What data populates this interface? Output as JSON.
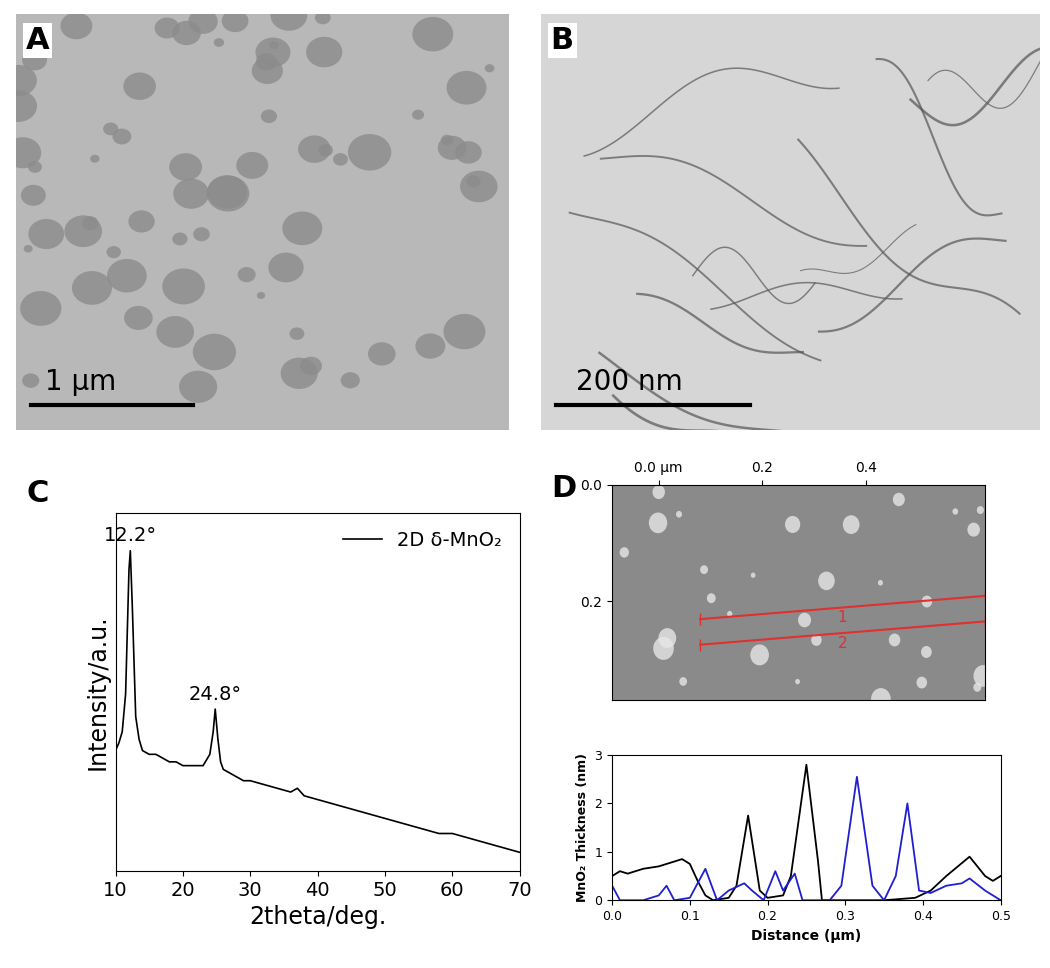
{
  "chart_data": [
    {
      "type": "image",
      "panel": "A",
      "scale_bar": "1 μm"
    },
    {
      "type": "image",
      "panel": "B",
      "scale_bar": "200 nm"
    },
    {
      "type": "line",
      "panel": "C",
      "x": [
        10,
        10.5,
        11,
        11.5,
        12,
        12.2,
        12.5,
        13,
        13.5,
        14,
        15,
        16,
        17,
        18,
        19,
        20,
        21,
        22,
        23,
        24,
        24.5,
        24.8,
        25.2,
        25.6,
        26,
        27,
        28,
        29,
        30,
        32,
        34,
        36,
        37,
        38,
        40,
        42,
        44,
        46,
        48,
        50,
        52,
        54,
        56,
        58,
        60,
        62,
        64,
        66,
        68,
        70
      ],
      "series": [
        {
          "name": "2D δ-MnO₂",
          "color": "#000000",
          "values": [
            0.47,
            0.49,
            0.52,
            0.62,
            0.95,
            1.0,
            0.85,
            0.56,
            0.5,
            0.47,
            0.46,
            0.46,
            0.45,
            0.44,
            0.44,
            0.43,
            0.43,
            0.43,
            0.43,
            0.46,
            0.52,
            0.58,
            0.5,
            0.44,
            0.42,
            0.41,
            0.4,
            0.39,
            0.39,
            0.38,
            0.37,
            0.36,
            0.37,
            0.35,
            0.34,
            0.33,
            0.32,
            0.31,
            0.3,
            0.29,
            0.28,
            0.27,
            0.26,
            0.25,
            0.25,
            0.24,
            0.23,
            0.22,
            0.21,
            0.2
          ]
        }
      ],
      "xlabel": "2theta/deg.",
      "ylabel": "Intensity/a.u.",
      "xlim": [
        10,
        70
      ],
      "xticks": [
        10,
        20,
        30,
        40,
        50,
        60,
        70
      ],
      "ylim": [
        0.15,
        1.1
      ],
      "tick_labels": "x",
      "legend": "upper right",
      "annotations": [
        {
          "text": "12.2°",
          "x": 12.2,
          "y": 1.0
        },
        {
          "text": "24.8°",
          "x": 24.8,
          "y": 0.58
        }
      ]
    },
    {
      "type": "image",
      "panel": "D",
      "xlim": [
        -0.09,
        0.63
      ],
      "xticks": [
        {
          "value": 0.0,
          "label": "0.0 µm"
        },
        0.2,
        0.4
      ],
      "ylim": [
        0.37,
        0.0
      ],
      "yticks": [
        {
          "value": 0.0,
          "label": "0.0"
        },
        0.2
      ],
      "lines": [
        {
          "label": "1",
          "color": "#e03030",
          "x": [
            0.08,
            0.63
          ],
          "y": [
            0.231,
            0.191
          ]
        },
        {
          "label": "2",
          "color": "#e03030",
          "x": [
            0.08,
            0.63
          ],
          "y": [
            0.275,
            0.235
          ]
        }
      ]
    },
    {
      "type": "line",
      "series": [
        {
          "color": "#000000",
          "x": [
            0,
            0.01,
            0.02,
            0.04,
            0.06,
            0.08,
            0.09,
            0.1,
            0.11,
            0.12,
            0.13,
            0.15,
            0.16,
            0.175,
            0.19,
            0.2,
            0.22,
            0.23,
            0.25,
            0.265,
            0.27,
            0.3,
            0.35,
            0.39,
            0.41,
            0.43,
            0.46,
            0.48,
            0.49,
            0.5
          ],
          "values": [
            0.5,
            0.6,
            0.55,
            0.65,
            0.7,
            0.8,
            0.85,
            0.75,
            0.4,
            0.1,
            0.0,
            0.05,
            0.3,
            1.75,
            0.2,
            0.05,
            0.1,
            0.5,
            2.8,
            0.8,
            0.0,
            0.0,
            0.0,
            0.05,
            0.2,
            0.5,
            0.9,
            0.5,
            0.4,
            0.5
          ]
        },
        {
          "color": "#1f1fd0",
          "x": [
            0,
            0.01,
            0.04,
            0.06,
            0.07,
            0.08,
            0.1,
            0.12,
            0.135,
            0.15,
            0.17,
            0.18,
            0.195,
            0.21,
            0.22,
            0.235,
            0.245,
            0.28,
            0.295,
            0.315,
            0.335,
            0.35,
            0.365,
            0.38,
            0.395,
            0.41,
            0.43,
            0.45,
            0.46,
            0.48,
            0.5
          ],
          "values": [
            0.3,
            0.0,
            0.0,
            0.1,
            0.3,
            0.0,
            0.05,
            0.65,
            0.0,
            0.2,
            0.35,
            0.2,
            0.0,
            0.6,
            0.2,
            0.55,
            0.0,
            0.0,
            0.3,
            2.55,
            0.3,
            0.0,
            0.5,
            2.0,
            0.2,
            0.15,
            0.3,
            0.35,
            0.45,
            0.2,
            0.0
          ]
        }
      ],
      "xlabel": "Distance (µm)",
      "ylabel": "MnO₂ Thickness (nm)",
      "xlim": [
        0,
        0.5
      ],
      "xticks": [
        {
          "value": 0.0,
          "label": "0.0"
        },
        {
          "value": 0.1,
          "label": "0.1"
        },
        {
          "value": 0.2,
          "label": "0.2"
        },
        {
          "value": 0.3,
          "label": "0.3"
        },
        {
          "value": 0.4,
          "label": "0.4"
        },
        {
          "value": 0.5,
          "label": "0.5"
        }
      ],
      "ylim": [
        0,
        3
      ],
      "yticks": [
        0,
        1,
        2,
        3
      ]
    }
  ]
}
